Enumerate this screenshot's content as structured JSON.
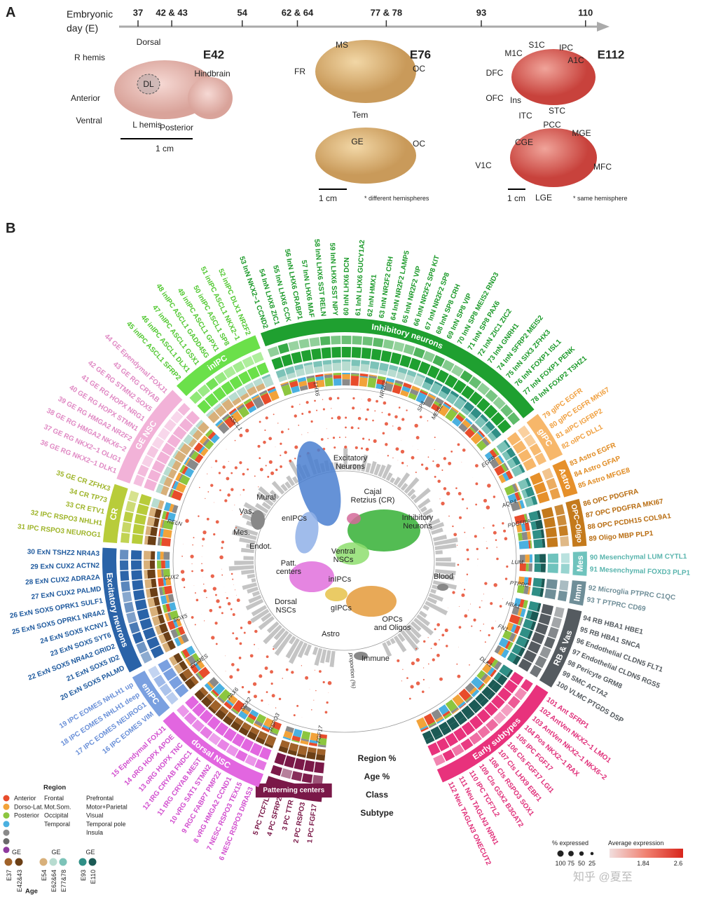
{
  "panel_a": {
    "letter": "A",
    "axis_label": [
      "Embryonic",
      "day (E)"
    ],
    "ticks": [
      37,
      {
        "value": 42.5,
        "label": "42 & 43"
      },
      54,
      {
        "value": 63,
        "label": "62 & 64"
      },
      {
        "value": 77.5,
        "label": "77 & 78"
      },
      93,
      110
    ],
    "specimens": [
      {
        "stage": "E42",
        "labels": [
          "Dorsal",
          "R hemis",
          "Anterior",
          "Ventral",
          "L hemis",
          "Posterior",
          "Hindbrain",
          "DL"
        ],
        "scale_bar": "1 cm"
      },
      {
        "stage": "E76",
        "labels": [
          "MS",
          "FR",
          "OC",
          "Tem",
          "GE",
          "OC"
        ],
        "scale_bar": "1 cm",
        "note": "* different hemispheres"
      },
      {
        "stage": "E112",
        "labels": [
          "S1C",
          "M1C",
          "IPC",
          "A1C",
          "DFC",
          "OFC",
          "Ins",
          "ITC",
          "STC",
          "PCC",
          "CGE",
          "MGE",
          "V1C",
          "MFC",
          "LGE"
        ],
        "scale_bar": "1 cm",
        "note": "* same hemisphere"
      }
    ]
  },
  "panel_b": {
    "letter": "B",
    "ring_labels": [
      "Region %",
      "Age %",
      "Class",
      "Subtype"
    ],
    "classes": [
      {
        "name": "Patterning centers",
        "color": "#7a1848",
        "label_color": "#7a1848",
        "subtypes": [
          "1 PC FGF17",
          "2 PC RSPO3",
          "3 PC TTR",
          "4 PC SFRP2",
          "5 PC TCF7L2"
        ]
      },
      {
        "name": "dorsal NSC",
        "color": "#e266e0",
        "label_color": "#d24fcf",
        "subtypes": [
          "6 NESC RSPO3 DIRAS3",
          "7 NESC RSPO3 TEX15",
          "8 vRG HMGA2 CCND1",
          "9 RGC FABP7 PMP22",
          "10 vRG SAT1 STMN2",
          "11 tRG CRYAB MEST",
          "12 tRG CRYAB FNDC1",
          "13 oRG HOPX TNC",
          "14 oRG HOPX APOE",
          "15 Ependymal FOXJ1"
        ]
      },
      {
        "name": "enIPC",
        "color": "#7aa0e0",
        "label_color": "#6a90d8",
        "subtypes": [
          "16 IPC EOMES VIM",
          "17 IPC EOMES NEUROG1",
          "18 IPC EOMES NHLH1 deep",
          "19 IPC EOMES NHLH1 up"
        ]
      },
      {
        "name": "Excitatory neurons",
        "color": "#2a63a8",
        "label_color": "#1f5a9e",
        "subtypes": [
          "20 ExN SOX5 PALMD",
          "21 ExN SOX5 ID2",
          "22 ExN SOX5 NR4A2 GRID2",
          "23 ExN SOX5 SYT6",
          "24 ExN SOX5 KCNV1",
          "25 ExN SOX5 OPRK1 NR4A2",
          "26 ExN SOX5 OPRK1 SULF1",
          "27 ExN CUX2 PALMD",
          "28 ExN CUX2 ADRA2A",
          "29 ExN CUX2 ACTN2",
          "30 ExN TSHZ2 NR4A3"
        ]
      },
      {
        "name": "CR",
        "color": "#b8cc3a",
        "label_color": "#9fb52a",
        "subtypes": [
          "31 IPC RSPO3 NEUROG1",
          "32 IPC RSPO3 NHLH1",
          "33 CR ETV1",
          "34 CR TP73",
          "35 GE CR ZFHX3"
        ]
      },
      {
        "name": "GE NSC",
        "color": "#f2b2d8",
        "label_color": "#e08ac4",
        "subtypes": [
          "36 GE RG NKX2−1 DLK1",
          "37 GE RG NKX2−1 OLIG1",
          "38 GE RG HMGA2 NKX6−2",
          "39 GE RG HMGA2 NR2F2",
          "40 GE RG HOPX STMN1",
          "41 GE RG HOPX NRG1",
          "42 GE RG STMN2 SOX5",
          "43 GE RG CRYAB",
          "44 GE Ependymal FOXJ1"
        ]
      },
      {
        "name": "inIPC",
        "color": "#6be04a",
        "label_color": "#52c832",
        "subtypes": [
          "45 inIPC ASCL1 SFRP2",
          "46 inIPC ASCL1 DLX1",
          "47 inIPC ASCL1 GSX1",
          "48 inIPC ASCL1 GADD45G",
          "49 inIPC ASCL1 GPX1",
          "50 inIPC ASCL1 SP8",
          "51 inIPC ASCL1 NKX2−1",
          "52 inIPC DLX1 NR2F2"
        ]
      },
      {
        "name": "Inhibitory neurons",
        "color": "#1fa030",
        "label_color": "#1c9a2a",
        "subtypes": [
          "53 InN NKX2−1 CCND2",
          "54 InN LHX8 ZIC1",
          "55 InN LHX6 CCK",
          "56 InN LHX6 CRABP1",
          "57 InN LHX6 MAF",
          "58 InN LHX6 SST RELN",
          "59 InN LHX6 SST NPY",
          "60 InN LHX6 DCN",
          "61 InN LHX6 GUCY1A2",
          "62 InN HMX1",
          "63 InN NR2F2 CRH",
          "64 InN NR2F2 LAMP5",
          "65 InN NR2F2 VIP",
          "66 InN NR2F2 SP8 KIT",
          "67 InN NR2F2 SP8",
          "68 InN SP8 CRH",
          "69 InN SP8 VIP",
          "70 InN SP8 MEIS2 RND3",
          "71 InN SP8 PAX6",
          "72 InN ZIC1 ZIC2",
          "73 InN GNRH1",
          "74 InN SFRP2 MEIS2",
          "75 InN SIX3 ZFHX3",
          "76 InN FOXP1 ISL1",
          "77 InN FOXP1 PENK",
          "78 InN FOXP2 TSHZ1"
        ]
      },
      {
        "name": "gIPC",
        "color": "#f7b76a",
        "label_color": "#f0a040",
        "subtypes": [
          "79 glPC EGFR",
          "80 glPC EGFR MKI67",
          "81 aIPC IGFBP2",
          "82 oIPC DLL1"
        ]
      },
      {
        "name": "Astro",
        "color": "#e6902a",
        "label_color": "#e08a20",
        "subtypes": [
          "83 Astro EGFR",
          "84 Astro GFAP",
          "85 Astro MFGE8"
        ]
      },
      {
        "name": "OPC−Oligo",
        "color": "#c47a1c",
        "label_color": "#b86c10",
        "subtypes": [
          "86 OPC PDGFRA",
          "87 OPC PDGFRA MKI67",
          "88 OPC PCDH15 COL9A1",
          "89 Oligo MBP PLP1"
        ]
      },
      {
        "name": "Mes",
        "color": "#6fc3bd",
        "label_color": "#5ab5ae",
        "subtypes": [
          "90 Mesenchymal LUM CYTL1",
          "91 Mesenchymal FOXD3 PLP1"
        ]
      },
      {
        "name": "Imm",
        "color": "#6f8e98",
        "label_color": "#6f8e98",
        "subtypes": [
          "92 Microglia PTPRC C1QC",
          "93 T PTPRC CD69"
        ]
      },
      {
        "name": "RB & Vas",
        "color": "#555b60",
        "label_color": "#555b60",
        "subtypes": [
          "94 RB HBA1 HBE1",
          "95 RB HBA1 SNCA",
          "96 Endothelial CLDN5 FLT1",
          "97 Endothelial CLDN5 RGS5",
          "98 Pericyte GRM8",
          "99 SMC ACTA2",
          "100 VLMC PTGDS DSP"
        ]
      },
      {
        "name": "Early subtypes",
        "color": "#e8327c",
        "label_color": "#e0307a",
        "subtypes": [
          "101 Ant SFRP1",
          "102 AntVen NKX2−1 LMO1",
          "103 AntVen NKX2−1 NKX6−2",
          "104 Pos NKX2−1 RAX",
          "105 IPC FGF17",
          "106 Cls FGF17 LGI1",
          "107 Cls LHX9 EBF1",
          "108 Cls RSPO3 SOX1",
          "109 Cls GSX2 B3GAT2",
          "110 IPC TCF7L2",
          "111 Neu TAGLN3 NRN1",
          "112 Neu TAGLN3 ONECUT2"
        ]
      }
    ],
    "genes": [
      "LHX6",
      "ASCL1",
      "NR2F2",
      "SP8",
      "MEIS2",
      "EGFR",
      "AQP4",
      "PDGFRA",
      "LUM",
      "PTPRC",
      "HBA1",
      "FN1",
      "DLK1",
      "FGF17",
      "RSPO3",
      "SOX2",
      "PAX6",
      "EOMES",
      "SOX5",
      "CUX2",
      "RELN"
    ],
    "umap_labels": [
      [
        "Excitatory",
        "Neurons"
      ],
      [
        "Cajal",
        "Retzius (CR)"
      ],
      [
        "Inhibitory",
        "Neurons"
      ],
      [
        "enIPCs"
      ],
      [
        "Ventral",
        "NSCs"
      ],
      [
        "Patt.",
        "centers"
      ],
      [
        "inIPCs"
      ],
      [
        "Dorsal",
        "NSCs"
      ],
      [
        "gIPCs"
      ],
      [
        "OPCs",
        "and Oligos"
      ],
      [
        "Astro"
      ],
      [
        "Mural"
      ],
      [
        "Vas."
      ],
      [
        "Mes."
      ],
      [
        "Endot."
      ],
      [
        "Blood"
      ],
      [
        "Immune"
      ]
    ],
    "bar_axis_label": "proportion (%)",
    "region_legend": {
      "title": "Region",
      "rows": [
        {
          "color": "#e84c2b",
          "labels": [
            "Anterior",
            "Frontal",
            "Prefrontal"
          ]
        },
        {
          "color": "#f2a33a",
          "labels": [
            "Dorso-Lat.",
            "Mot.Som.",
            "Motor+Parietal"
          ]
        },
        {
          "color": "#8cc63f",
          "labels": [
            "Posterior",
            "Occipital",
            "Visual"
          ]
        },
        {
          "color": "#4ab0e0",
          "labels": [
            null,
            "Temporal",
            "Temporal pole"
          ]
        },
        {
          "color": "#8a8a8a",
          "labels": [
            null,
            null,
            "Insula"
          ]
        },
        {
          "color": "#6a6a6a",
          "labels": [
            null,
            null,
            null
          ]
        },
        {
          "color": "#8e3a9e",
          "labels": [
            null,
            null,
            null
          ]
        }
      ]
    },
    "age_legend": {
      "title": "Age",
      "groups": [
        {
          "label": "GE",
          "stages": [
            {
              "name": "E37",
              "color": "#a0622a"
            },
            {
              "name": "E42&43",
              "color": "#6b3f16"
            }
          ]
        },
        {
          "label": "GE",
          "stages": [
            {
              "name": "E54",
              "color": "#d8b07a"
            },
            {
              "name": "E62&64",
              "color": "#b8dcd0"
            },
            {
              "name": "E77&78",
              "color": "#7cc3b8"
            }
          ]
        },
        {
          "label": "GE",
          "stages": [
            {
              "name": "E93",
              "color": "#2f8f86"
            },
            {
              "name": "E110",
              "color": "#1b5a55"
            }
          ]
        }
      ]
    },
    "expression_legend": {
      "size_title": "% expressed",
      "sizes": [
        100,
        75,
        50,
        25
      ],
      "color_title": "Average expression",
      "color_ticks": [
        1.84,
        2.6
      ]
    }
  },
  "watermark": "知乎 @夏至"
}
